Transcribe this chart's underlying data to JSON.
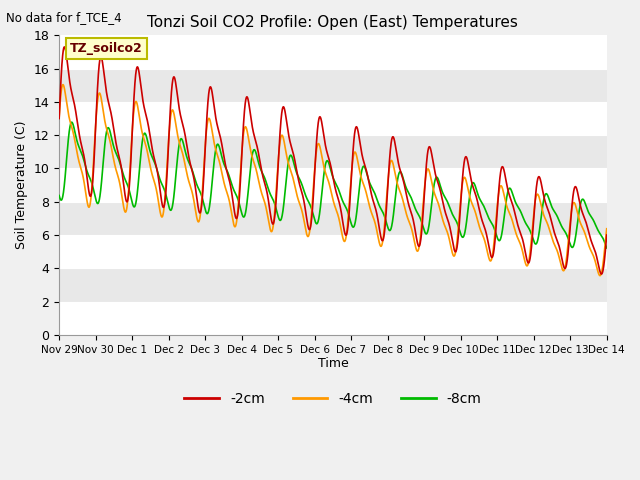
{
  "title": "Tonzi Soil CO2 Profile: Open (East) Temperatures",
  "no_data_text": "No data for f_TCE_4",
  "ylabel": "Soil Temperature (C)",
  "xlabel": "Time",
  "sensor_label": "TZ_soilco2",
  "legend_labels": [
    "-2cm",
    "-4cm",
    "-8cm"
  ],
  "colors": [
    "#cc0000",
    "#ff9900",
    "#00bb00"
  ],
  "ylim": [
    0,
    18
  ],
  "yticks": [
    0,
    2,
    4,
    6,
    8,
    10,
    12,
    14,
    16,
    18
  ],
  "xtick_labels": [
    "Nov 29",
    "Nov 30",
    "Dec 1",
    "Dec 2",
    "Dec 3",
    "Dec 4",
    "Dec 5",
    "Dec 6",
    "Dec 7",
    "Dec 8",
    "Dec 9",
    "Dec 10",
    "Dec 11",
    "Dec 12",
    "Dec 13",
    "Dec 14"
  ],
  "background_color": "#f0f0f0",
  "plot_bg_color": "#e8e8e8",
  "band_light": "#e8e8e8",
  "band_dark": "#ffffff",
  "linewidth": 1.2,
  "figsize": [
    6.4,
    4.8
  ],
  "dpi": 100
}
